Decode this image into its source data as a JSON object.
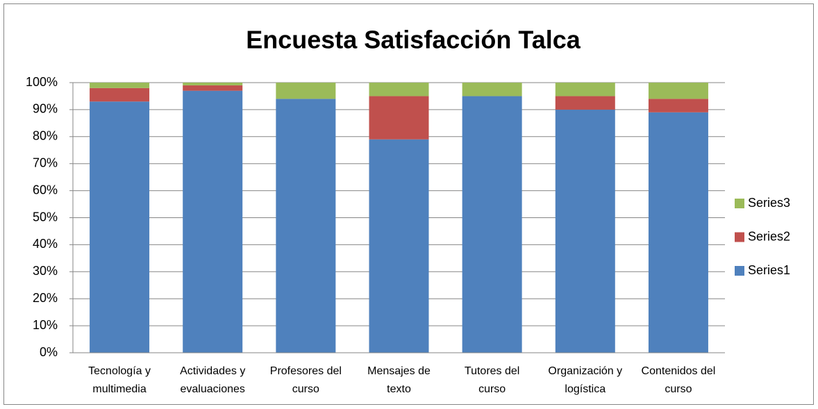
{
  "chart_data": {
    "type": "stacked_bar",
    "title": "Encuesta Satisfacción Talca",
    "categories": [
      "Tecnología y multimedia",
      "Actividades y evaluaciones",
      "Profesores del curso",
      "Mensajes de texto",
      "Tutores del curso",
      "Organización y logística",
      "Contenidos del curso"
    ],
    "series": [
      {
        "name": "Series1",
        "color": "#4f81bd",
        "values": [
          93,
          97,
          94,
          79,
          95,
          90,
          89
        ]
      },
      {
        "name": "Series2",
        "color": "#c0504d",
        "values": [
          5,
          2,
          0,
          16,
          0,
          5,
          5
        ]
      },
      {
        "name": "Series3",
        "color": "#9bbb59",
        "values": [
          2,
          1,
          6,
          5,
          5,
          5,
          6
        ]
      }
    ],
    "ylim": [
      0,
      100
    ],
    "yticks": [
      {
        "value": 0,
        "label": "0%"
      },
      {
        "value": 10,
        "label": "10%"
      },
      {
        "value": 20,
        "label": "20%"
      },
      {
        "value": 30,
        "label": "30%"
      },
      {
        "value": 40,
        "label": "40%"
      },
      {
        "value": 50,
        "label": "50%"
      },
      {
        "value": 60,
        "label": "60%"
      },
      {
        "value": 70,
        "label": "70%"
      },
      {
        "value": 80,
        "label": "80%"
      },
      {
        "value": 90,
        "label": "90%"
      },
      {
        "value": 100,
        "label": "100%"
      }
    ],
    "grid": true,
    "legend": "right"
  }
}
